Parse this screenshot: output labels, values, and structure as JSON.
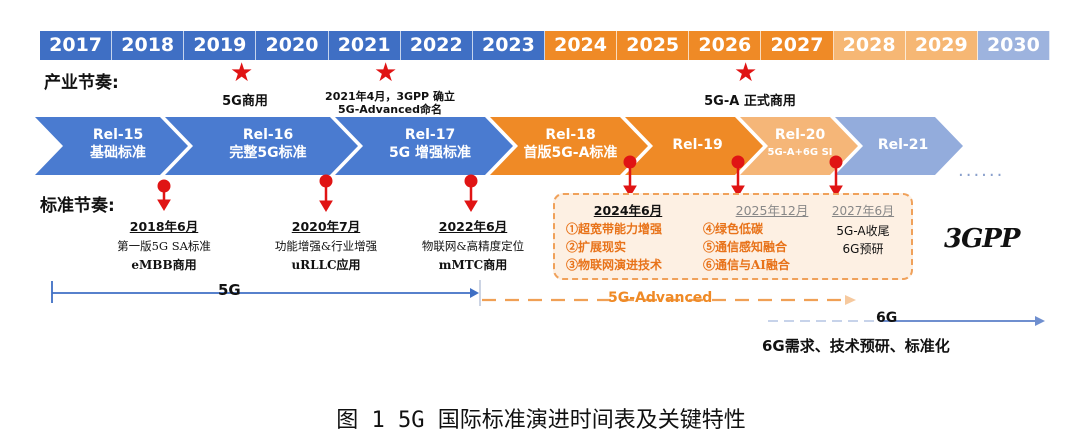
{
  "years": [
    {
      "label": "2017",
      "color": "#3f6fc4"
    },
    {
      "label": "2018",
      "color": "#3f6fc4"
    },
    {
      "label": "2019",
      "color": "#3f6fc4"
    },
    {
      "label": "2020",
      "color": "#3f6fc4"
    },
    {
      "label": "2021",
      "color": "#3f6fc4"
    },
    {
      "label": "2022",
      "color": "#3f6fc4"
    },
    {
      "label": "2023",
      "color": "#3f6fc4"
    },
    {
      "label": "2024",
      "color": "#ef8a26"
    },
    {
      "label": "2025",
      "color": "#ef8a26"
    },
    {
      "label": "2026",
      "color": "#ef8a26"
    },
    {
      "label": "2027",
      "color": "#ef8a26"
    },
    {
      "label": "2028",
      "color": "#f6b774"
    },
    {
      "label": "2029",
      "color": "#f6b774"
    },
    {
      "label": "2030",
      "color": "#9db3de"
    }
  ],
  "industry_label": "产业节奏:",
  "industry_events": {
    "e2019": "5G商用",
    "e2021_line1": "2021年4月，3GPP 确立",
    "e2021_line2": "5G-Advanced命名",
    "e2026": "5G-A 正式商用"
  },
  "releases": [
    {
      "name": "Rel-15",
      "desc": "基础标准",
      "color": "#4a7bd0"
    },
    {
      "name": "Rel-16",
      "desc": "完整5G标准",
      "color": "#4a7bd0"
    },
    {
      "name": "Rel-17",
      "desc": "5G 增强标准",
      "color": "#4a7bd0"
    },
    {
      "name": "Rel-18",
      "desc": "首版5G-A标准",
      "color": "#ef8a26"
    },
    {
      "name": "Rel-19",
      "desc": "",
      "color": "#ef8a26"
    },
    {
      "name": "Rel-20",
      "desc": "5G-A+6G SI",
      "color": "#f5b678"
    },
    {
      "name": "Rel-21",
      "desc": "",
      "color": "#93acdc"
    }
  ],
  "ellipsis": "......",
  "standards_label": "标准节奏:",
  "standards": {
    "s2018_date": "2018年6月",
    "s2018_desc": "第一版5G SA标准",
    "s2018_sub": "eMBB商用",
    "s2020_date": "2020年7月",
    "s2020_desc": "功能增强&行业增强",
    "s2020_sub": "uRLLC应用",
    "s2022_date": "2022年6月",
    "s2022_desc": "物联网&高精度定位",
    "s2022_sub": "mMTC商用"
  },
  "box": {
    "date_2024": "2024年6月",
    "date_2025": "2025年12月",
    "date_2027": "2027年6月",
    "f1": "①超宽带能力增强",
    "f2": "②扩展现实",
    "f3": "③物联网演进技术",
    "f4": "④绿色低碳",
    "f5": "⑤通信感知融合",
    "f6": "⑥通信与AI融合",
    "n1": "5G-A收尾",
    "n2": "6G预研"
  },
  "logo_text": "3GPP",
  "timelines": {
    "g5": "5G",
    "g5a": "5G-Advanced",
    "g6": "6G",
    "g6_desc": "6G需求、技术预研、标准化"
  },
  "colors": {
    "blue": "#3f6fc4",
    "orange": "#ef8a26",
    "red": "#e01414",
    "light_blue": "#9db3de"
  },
  "caption": "图 1 5G 国际标准演进时间表及关键特性"
}
